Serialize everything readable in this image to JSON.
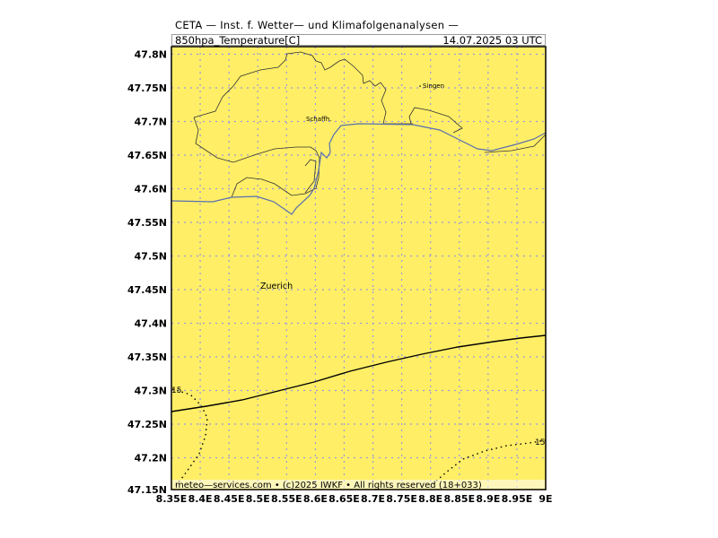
{
  "header": {
    "title": "CETA — Inst. f. Wetter— und Klimafolgenanalysen —",
    "variable": "850hpa_Temperature[C]",
    "datetime": "14.07.2025  03  UTC"
  },
  "footer": {
    "credit": "meteo—services.com • (c)2025 IWKF • All rights reserved (18+033)"
  },
  "map": {
    "fill_color": "#ffee66",
    "lon_ticks": [
      "8.35E",
      "8.4E",
      "8.45E",
      "8.5E",
      "8.55E",
      "8.6E",
      "8.65E",
      "8.7E",
      "8.75E",
      "8.8E",
      "8.85E",
      "8.9E",
      "8.95E",
      "9E"
    ],
    "lat_ticks": [
      "47.8N",
      "47.75N",
      "47.7N",
      "47.65N",
      "47.6N",
      "47.55N",
      "47.5N",
      "47.45N",
      "47.4N",
      "47.35N",
      "47.3N",
      "47.25N",
      "47.2N",
      "47.15N"
    ],
    "cities": [
      {
        "name": "Singen"
      },
      {
        "name": "Schaffh."
      },
      {
        "name": "Zuerich"
      }
    ],
    "contour_labels": [
      "15",
      "15"
    ]
  }
}
